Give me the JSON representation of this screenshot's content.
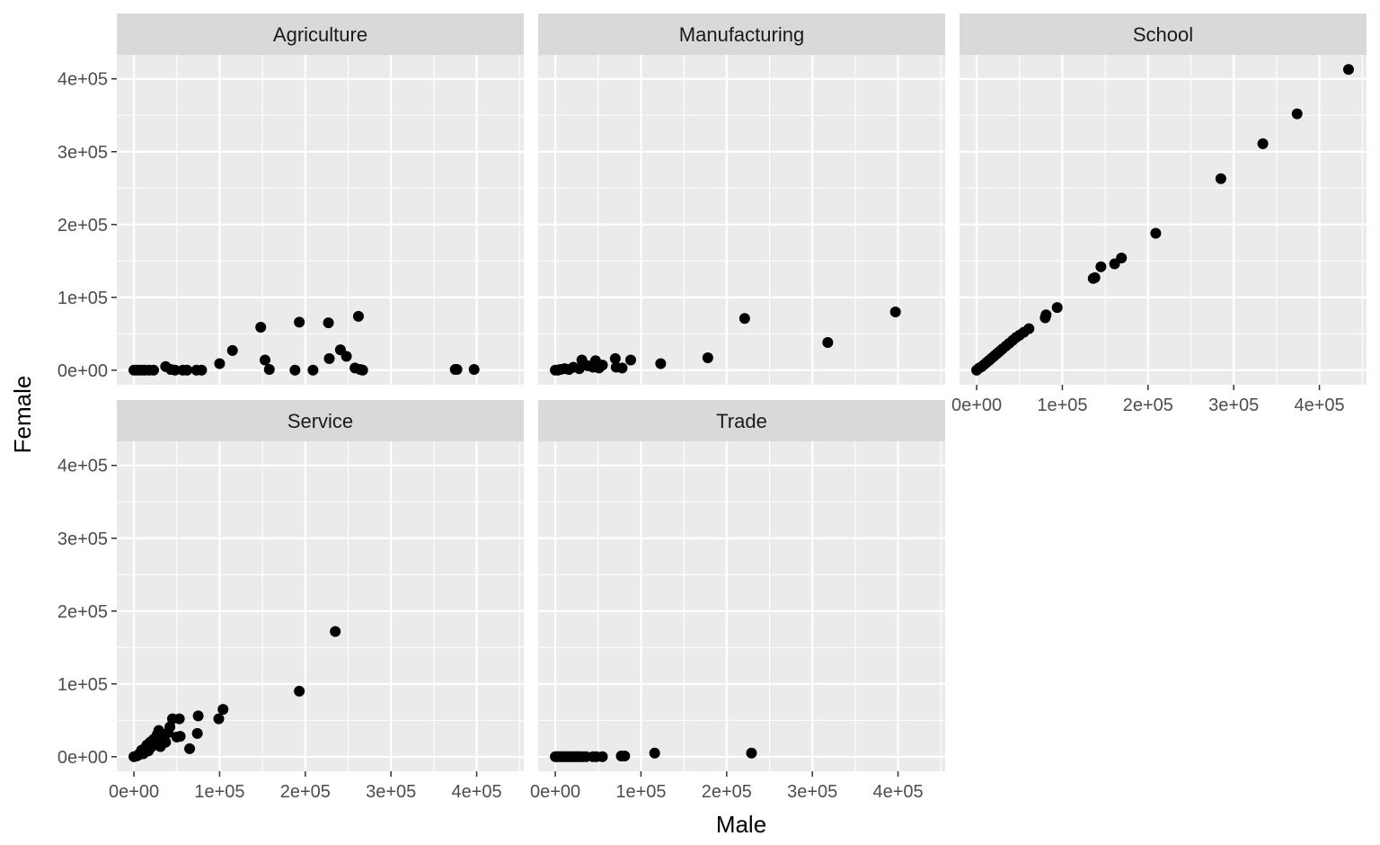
{
  "chart_data": {
    "type": "scatter",
    "faceted": true,
    "xlabel": "Male",
    "ylabel": "Female",
    "xlim": [
      -20000,
      455000
    ],
    "ylim": [
      -20000,
      433000
    ],
    "x_ticks": [
      0,
      100000,
      200000,
      300000,
      400000
    ],
    "x_tick_labels": [
      "0e+00",
      "1e+05",
      "2e+05",
      "3e+05",
      "4e+05"
    ],
    "y_ticks": [
      0,
      100000,
      200000,
      300000,
      400000
    ],
    "y_tick_labels": [
      "0e+00",
      "1e+05",
      "2e+05",
      "3e+05",
      "4e+05"
    ],
    "grid": true,
    "colors": {
      "panel_bg": "#ebebeb",
      "strip_bg": "#d9d9d9",
      "grid": "#ffffff",
      "point": "#000000"
    },
    "panels": [
      {
        "name": "Agriculture",
        "points": [
          [
            0,
            0
          ],
          [
            3000,
            0
          ],
          [
            6000,
            0
          ],
          [
            10000,
            0
          ],
          [
            13000,
            0
          ],
          [
            18000,
            0
          ],
          [
            23000,
            0
          ],
          [
            37000,
            5000
          ],
          [
            43000,
            1000
          ],
          [
            48000,
            0
          ],
          [
            57000,
            0
          ],
          [
            62000,
            0
          ],
          [
            73000,
            0
          ],
          [
            79000,
            0
          ],
          [
            100000,
            9000
          ],
          [
            115000,
            27000
          ],
          [
            148000,
            59000
          ],
          [
            153000,
            14000
          ],
          [
            158000,
            1000
          ],
          [
            188000,
            0
          ],
          [
            193000,
            66000
          ],
          [
            209000,
            0
          ],
          [
            227000,
            65000
          ],
          [
            228000,
            16000
          ],
          [
            241000,
            28000
          ],
          [
            248000,
            19000
          ],
          [
            258000,
            3000
          ],
          [
            262000,
            74000
          ],
          [
            264000,
            1000
          ],
          [
            267000,
            0
          ],
          [
            375000,
            1000
          ],
          [
            377000,
            1000
          ],
          [
            397000,
            1000
          ]
        ]
      },
      {
        "name": "Manufacturing",
        "points": [
          [
            0,
            0
          ],
          [
            3000,
            0
          ],
          [
            6000,
            1000
          ],
          [
            11000,
            2000
          ],
          [
            16000,
            1000
          ],
          [
            21000,
            4000
          ],
          [
            28000,
            2000
          ],
          [
            31000,
            14000
          ],
          [
            38000,
            6000
          ],
          [
            44000,
            4000
          ],
          [
            47000,
            13000
          ],
          [
            51000,
            3000
          ],
          [
            55000,
            7000
          ],
          [
            70000,
            16000
          ],
          [
            71000,
            4000
          ],
          [
            78000,
            3000
          ],
          [
            88000,
            14000
          ],
          [
            123000,
            9000
          ],
          [
            178000,
            17000
          ],
          [
            221000,
            71000
          ],
          [
            318000,
            38000
          ],
          [
            397000,
            80000
          ]
        ]
      },
      {
        "name": "School",
        "points": [
          [
            0,
            0
          ],
          [
            3000,
            3000
          ],
          [
            6000,
            5000
          ],
          [
            9000,
            8000
          ],
          [
            12000,
            11000
          ],
          [
            15000,
            14000
          ],
          [
            18000,
            17000
          ],
          [
            21000,
            20000
          ],
          [
            24000,
            23000
          ],
          [
            27000,
            26000
          ],
          [
            30000,
            29000
          ],
          [
            34000,
            33000
          ],
          [
            38000,
            37000
          ],
          [
            42000,
            41000
          ],
          [
            46000,
            45000
          ],
          [
            50000,
            48000
          ],
          [
            55000,
            52000
          ],
          [
            61000,
            57000
          ],
          [
            80000,
            72000
          ],
          [
            81000,
            76000
          ],
          [
            94000,
            86000
          ],
          [
            136000,
            126000
          ],
          [
            138000,
            127000
          ],
          [
            145000,
            142000
          ],
          [
            161000,
            146000
          ],
          [
            169000,
            154000
          ],
          [
            209000,
            188000
          ],
          [
            285000,
            263000
          ],
          [
            334000,
            311000
          ],
          [
            374000,
            352000
          ],
          [
            434000,
            413000
          ]
        ]
      },
      {
        "name": "Service",
        "points": [
          [
            0,
            0
          ],
          [
            3000,
            1000
          ],
          [
            5000,
            2000
          ],
          [
            7000,
            5000
          ],
          [
            9000,
            9000
          ],
          [
            11000,
            4000
          ],
          [
            13000,
            12000
          ],
          [
            15000,
            16000
          ],
          [
            17000,
            8000
          ],
          [
            19000,
            20000
          ],
          [
            21000,
            14000
          ],
          [
            23000,
            24000
          ],
          [
            25000,
            18000
          ],
          [
            27000,
            30000
          ],
          [
            29000,
            36000
          ],
          [
            31000,
            14000
          ],
          [
            33000,
            27000
          ],
          [
            37000,
            20000
          ],
          [
            40000,
            33000
          ],
          [
            42000,
            41000
          ],
          [
            45000,
            52000
          ],
          [
            50000,
            27000
          ],
          [
            53000,
            52000
          ],
          [
            54000,
            28000
          ],
          [
            65000,
            11000
          ],
          [
            74000,
            32000
          ],
          [
            75000,
            56000
          ],
          [
            99000,
            52000
          ],
          [
            104000,
            65000
          ],
          [
            193000,
            90000
          ],
          [
            235000,
            172000
          ]
        ]
      },
      {
        "name": "Trade",
        "points": [
          [
            0,
            0
          ],
          [
            2000,
            0
          ],
          [
            4000,
            0
          ],
          [
            6000,
            0
          ],
          [
            8000,
            0
          ],
          [
            10000,
            0
          ],
          [
            12000,
            0
          ],
          [
            14000,
            0
          ],
          [
            16000,
            0
          ],
          [
            18000,
            0
          ],
          [
            20000,
            0
          ],
          [
            22000,
            0
          ],
          [
            24000,
            0
          ],
          [
            26000,
            0
          ],
          [
            28000,
            0
          ],
          [
            30000,
            0
          ],
          [
            33000,
            0
          ],
          [
            36000,
            0
          ],
          [
            44000,
            0
          ],
          [
            48000,
            0
          ],
          [
            55000,
            0
          ],
          [
            77000,
            1000
          ],
          [
            81000,
            1000
          ],
          [
            116000,
            5000
          ],
          [
            229000,
            5000
          ]
        ]
      }
    ]
  }
}
